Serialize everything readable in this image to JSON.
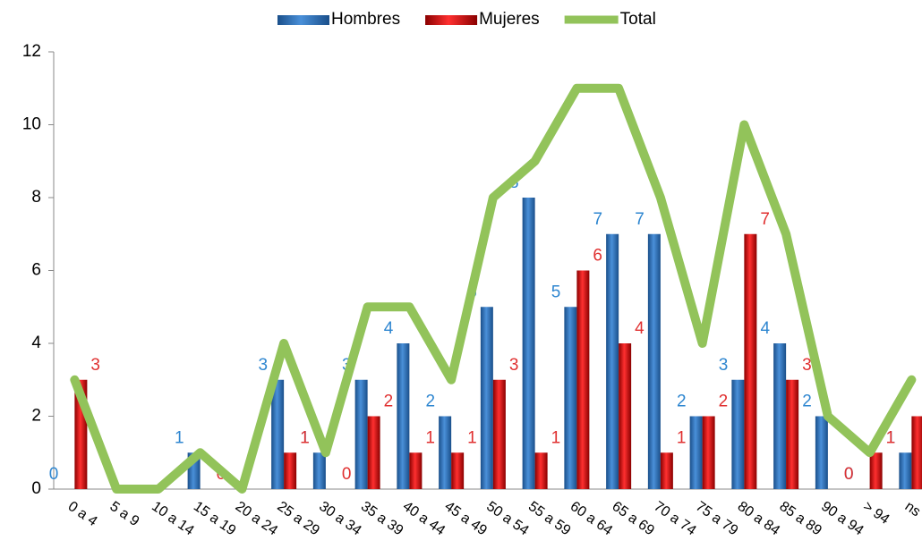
{
  "chart_data": {
    "type": "bar",
    "categories": [
      "0 a 4",
      "5 a 9",
      "10 a 14",
      "15 a 19",
      "20 a 24",
      "25 a 29",
      "30 a 34",
      "35 a 39",
      "40 a 44",
      "45 a 49",
      "50 a 54",
      "55 a 59",
      "60 a 64",
      "65 a 69",
      "70 a 74",
      "75 a 79",
      "80 a 84",
      "85 a 89",
      "90 a 94",
      "> 94",
      "ns"
    ],
    "series": [
      {
        "name": "Hombres",
        "color": "#2e75b6",
        "label_color": "#2e86d0",
        "values": [
          0,
          null,
          null,
          1,
          null,
          3,
          1,
          3,
          4,
          2,
          5,
          8,
          5,
          7,
          7,
          2,
          3,
          4,
          2,
          0,
          1
        ]
      },
      {
        "name": "Mujeres",
        "color": "#c00000",
        "label_color": "#e03030",
        "values": [
          3,
          null,
          null,
          0,
          null,
          1,
          0,
          2,
          1,
          1,
          3,
          1,
          6,
          4,
          1,
          2,
          7,
          3,
          0,
          1,
          2
        ]
      },
      {
        "name": "Total",
        "type": "line",
        "color": "#92c35a",
        "values": [
          3,
          0,
          0,
          1,
          0,
          4,
          1,
          5,
          5,
          3,
          8,
          9,
          11,
          11,
          8,
          4,
          10,
          7,
          2,
          1,
          3
        ]
      }
    ],
    "ylim": [
      0,
      12
    ],
    "yticks": [
      0,
      2,
      4,
      6,
      8,
      10,
      12
    ],
    "legend": "top"
  }
}
